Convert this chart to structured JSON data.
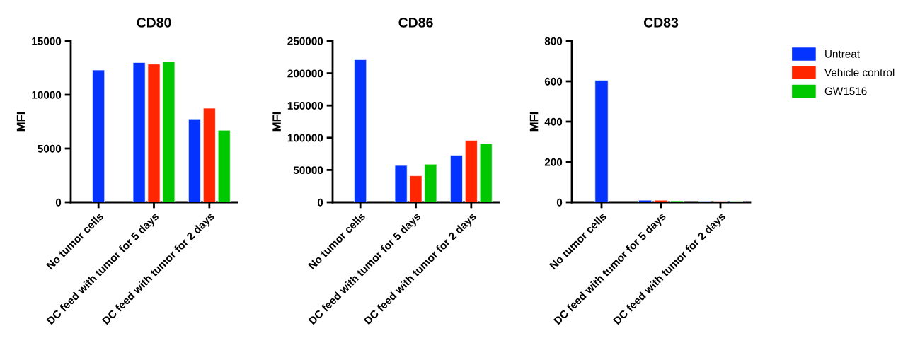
{
  "chart_data": [
    {
      "type": "bar",
      "title": "CD80",
      "ylabel": "MFI",
      "categories": [
        "No tumor cells",
        "DC feed with tumor for 5 days",
        "DC feed with tumor for 2 days"
      ],
      "ylim": [
        0,
        15000
      ],
      "yticks": [
        0,
        5000,
        10000,
        15000
      ],
      "grid": false,
      "series": [
        {
          "color": "#0433ff",
          "values": [
            12300,
            13000,
            7750
          ]
        },
        {
          "color": "#ff2600",
          "values": [
            null,
            12850,
            8750
          ]
        },
        {
          "color": "#00c800",
          "values": [
            null,
            13100,
            6700
          ]
        }
      ]
    },
    {
      "type": "bar",
      "title": "CD86",
      "ylabel": "MFI",
      "categories": [
        "No tumor cells",
        "DC feed with tumor for 5 days",
        "DC feed with tumor for 2 days"
      ],
      "ylim": [
        0,
        250000
      ],
      "yticks": [
        0,
        50000,
        100000,
        150000,
        200000,
        250000
      ],
      "grid": false,
      "series": [
        {
          "color": "#0433ff",
          "values": [
            221000,
            57000,
            73000
          ]
        },
        {
          "color": "#ff2600",
          "values": [
            null,
            41000,
            96000
          ]
        },
        {
          "color": "#00c800",
          "values": [
            null,
            59000,
            91000
          ]
        }
      ]
    },
    {
      "type": "bar",
      "title": "CD83",
      "ylabel": "MFI",
      "categories": [
        "No tumor cells",
        "DC feed with tumor for 5 days",
        "DC feed with tumor for 2 days"
      ],
      "ylim": [
        0,
        800
      ],
      "yticks": [
        0,
        200,
        400,
        600,
        800
      ],
      "grid": false,
      "legend": "right",
      "series": [
        {
          "name": "Untreat",
          "color": "#0433ff",
          "values": [
            605,
            10,
            5
          ]
        },
        {
          "name": "Vehicle control",
          "color": "#ff2600",
          "values": [
            null,
            10,
            5
          ]
        },
        {
          "name": "GW1516",
          "color": "#00c800",
          "values": [
            null,
            7,
            5
          ]
        }
      ]
    }
  ]
}
